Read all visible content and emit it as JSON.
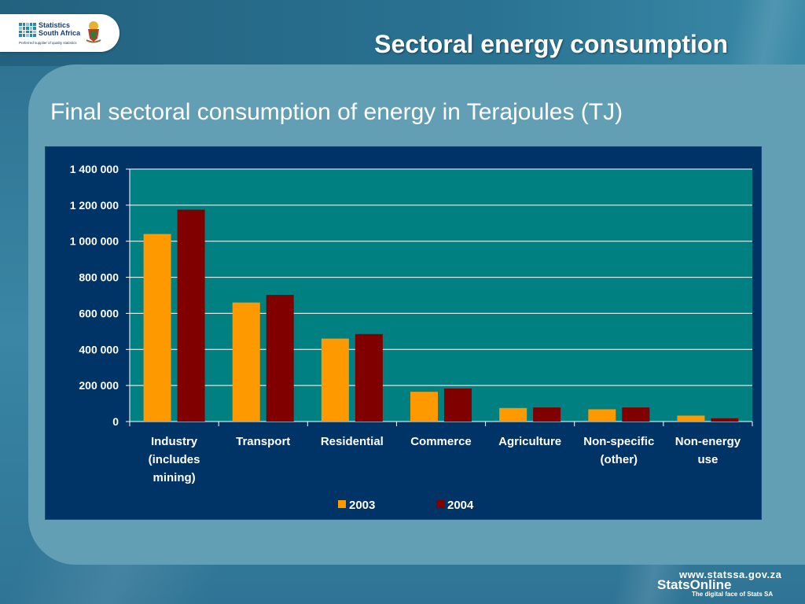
{
  "slide": {
    "title": "Sectoral energy consumption",
    "subtitle": "Final sectoral consumption of energy in Terajoules (TJ)"
  },
  "logo": {
    "line1": "Statistics",
    "line2": "South Africa",
    "tagline": "Preferred supplier of quality statistics"
  },
  "footer": {
    "url": "www.statssa.gov.za",
    "brand": "StatsOnline",
    "tagline": "The digital face of Stats SA"
  },
  "colors": {
    "series_2003": "#ff9900",
    "series_2004": "#800000",
    "plot_bg": "#008080",
    "chart_bg": "#003366",
    "gridline": "#ffffff"
  },
  "chart_data": {
    "type": "bar",
    "title": "",
    "xlabel": "",
    "ylabel": "",
    "categories": [
      [
        "Industry",
        "(includes",
        "mining)"
      ],
      [
        "Transport"
      ],
      [
        "Residential"
      ],
      [
        "Commerce"
      ],
      [
        "Agriculture"
      ],
      [
        "Non-specific",
        "(other)"
      ],
      [
        "Non-energy",
        "use"
      ]
    ],
    "series": [
      {
        "name": "2003",
        "values": [
          1040000,
          660000,
          460000,
          165000,
          75000,
          68000,
          33000
        ]
      },
      {
        "name": "2004",
        "values": [
          1175000,
          702000,
          485000,
          183000,
          78000,
          78000,
          18000
        ]
      }
    ],
    "ylim": [
      0,
      1400000
    ],
    "yticks": [
      0,
      200000,
      400000,
      600000,
      800000,
      1000000,
      1200000,
      1400000
    ],
    "ytick_labels": [
      "0",
      "200 000",
      "400 000",
      "600 000",
      "800 000",
      "1 000 000",
      "1 200 000",
      "1 400 000"
    ],
    "grid": true,
    "legend": "bottom"
  }
}
